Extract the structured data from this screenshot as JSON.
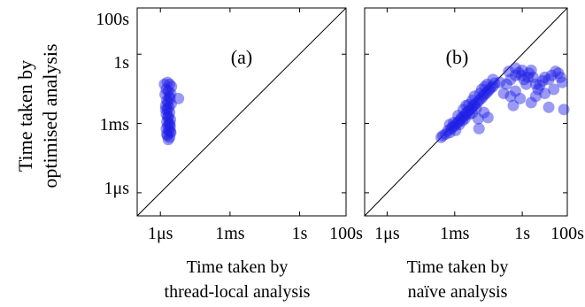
{
  "figure": {
    "ylabel_line1": "Time taken by",
    "ylabel_line2": "optimised analysis"
  },
  "chart_data": [
    {
      "type": "scatter",
      "panel_label": "(a)",
      "title": "",
      "xlabel_line1": "Time taken by",
      "xlabel_line2": "thread-local analysis",
      "xscale": "log",
      "yscale": "log",
      "xlim_seconds": [
        1e-07,
        100
      ],
      "ylim_seconds": [
        1e-07,
        100
      ],
      "xticks": [
        {
          "value": 1e-06,
          "label": "1μs"
        },
        {
          "value": 0.001,
          "label": "1ms"
        },
        {
          "value": 1,
          "label": "1s"
        },
        {
          "value": 100,
          "label": "100s"
        }
      ],
      "yticks": [],
      "diagonal": "y = x",
      "grid": false,
      "point_color": "#1f1fe6",
      "series": [
        {
          "points": [
            [
              1.5e-06,
              0.05
            ],
            [
              2e-06,
              0.06
            ],
            [
              2.5e-06,
              0.05
            ],
            [
              1.8e-06,
              0.03
            ],
            [
              2.2e-06,
              0.025
            ],
            [
              3e-06,
              0.04
            ],
            [
              1.6e-06,
              0.018
            ],
            [
              2.4e-06,
              0.015
            ],
            [
              2.8e-06,
              0.02
            ],
            [
              1.9e-06,
              0.01
            ],
            [
              2.1e-06,
              0.008
            ],
            [
              2.6e-06,
              0.012
            ],
            [
              1.7e-06,
              0.006
            ],
            [
              2.3e-06,
              0.005
            ],
            [
              2.9e-06,
              0.007
            ],
            [
              2e-06,
              0.004
            ],
            [
              2.5e-06,
              0.003
            ],
            [
              1.8e-06,
              0.0025
            ],
            [
              2.2e-06,
              0.002
            ],
            [
              2.7e-06,
              0.0015
            ],
            [
              1.9e-06,
              0.0012
            ],
            [
              2.4e-06,
              0.001
            ],
            [
              2.1e-06,
              0.0008
            ],
            [
              2.6e-06,
              0.0007
            ],
            [
              1.8e-06,
              0.0006
            ],
            [
              2.3e-06,
              0.0005
            ],
            [
              2.8e-06,
              0.0004
            ],
            [
              2e-06,
              0.0003
            ],
            [
              2.5e-06,
              0.00025
            ],
            [
              2.2e-06,
              0.0002
            ],
            [
              1.9e-06,
              0.00035
            ],
            [
              2.7e-06,
              0.00045
            ],
            [
              6e-06,
              0.012
            ],
            [
              2.1e-06,
              0.0018
            ],
            [
              2.6e-06,
              0.0009
            ],
            [
              1.7e-06,
              0.004
            ]
          ]
        }
      ]
    },
    {
      "type": "scatter",
      "panel_label": "(b)",
      "title": "",
      "xlabel_line1": "Time taken by",
      "xlabel_line2": "naïve analysis",
      "xscale": "log",
      "yscale": "log",
      "xlim_seconds": [
        1e-07,
        100
      ],
      "ylim_seconds": [
        1e-07,
        100
      ],
      "xticks": [
        {
          "value": 1e-06,
          "label": "1μs"
        },
        {
          "value": 0.001,
          "label": "1ms"
        },
        {
          "value": 1,
          "label": "1s"
        },
        {
          "value": 100,
          "label": "100s"
        }
      ],
      "yticks": [],
      "diagonal": "y = x",
      "grid": false,
      "point_color": "#1f1fe6",
      "series": [
        {
          "points": [
            [
              0.00025,
              0.00025
            ],
            [
              0.0003,
              0.0003
            ],
            [
              0.0004,
              0.00035
            ],
            [
              0.0005,
              0.0005
            ],
            [
              0.0006,
              0.0004
            ],
            [
              0.0007,
              0.0006
            ],
            [
              0.0008,
              0.0007
            ],
            [
              0.001,
              0.0008
            ],
            [
              0.0012,
              0.001
            ],
            [
              0.0015,
              0.0012
            ],
            [
              0.0018,
              0.0015
            ],
            [
              0.002,
              0.0018
            ],
            [
              0.0025,
              0.002
            ],
            [
              0.003,
              0.0025
            ],
            [
              0.0035,
              0.003
            ],
            [
              0.004,
              0.0035
            ],
            [
              0.005,
              0.004
            ],
            [
              0.006,
              0.005
            ],
            [
              0.007,
              0.006
            ],
            [
              0.008,
              0.007
            ],
            [
              0.01,
              0.008
            ],
            [
              0.012,
              0.01
            ],
            [
              0.015,
              0.012
            ],
            [
              0.018,
              0.015
            ],
            [
              0.02,
              0.018
            ],
            [
              0.025,
              0.02
            ],
            [
              0.03,
              0.025
            ],
            [
              0.035,
              0.03
            ],
            [
              0.04,
              0.035
            ],
            [
              0.05,
              0.04
            ],
            [
              0.0006,
              0.0009
            ],
            [
              0.0009,
              0.0011
            ],
            [
              0.0011,
              0.0005
            ],
            [
              0.0016,
              0.0009
            ],
            [
              0.0022,
              0.0013
            ],
            [
              0.0028,
              0.0016
            ],
            [
              0.0045,
              0.0025
            ],
            [
              0.006,
              0.0028
            ],
            [
              0.009,
              0.0045
            ],
            [
              0.011,
              0.0016
            ],
            [
              0.0014,
              0.0022
            ],
            [
              0.0024,
              0.004
            ],
            [
              0.0032,
              0.006
            ],
            [
              0.0042,
              0.0065
            ],
            [
              0.006,
              0.01
            ],
            [
              0.0075,
              0.015
            ],
            [
              0.013,
              0.02
            ],
            [
              0.016,
              0.03
            ],
            [
              0.022,
              0.04
            ],
            [
              0.028,
              0.05
            ],
            [
              0.05,
              0.08
            ],
            [
              0.06,
              0.055
            ],
            [
              0.02,
              0.003
            ],
            [
              0.03,
              0.0018
            ],
            [
              0.012,
              0.0006
            ],
            [
              0.1,
              0.06
            ],
            [
              0.15,
              0.02
            ],
            [
              0.2,
              0.05
            ],
            [
              0.3,
              0.08
            ],
            [
              0.5,
              0.12
            ],
            [
              0.7,
              0.16
            ],
            [
              0.9,
              0.12
            ],
            [
              1.2,
              0.08
            ],
            [
              1.5,
              0.05
            ],
            [
              1.8,
              0.1
            ],
            [
              2.0,
              0.15
            ],
            [
              2.5,
              0.2
            ],
            [
              3.0,
              0.1
            ],
            [
              4.0,
              0.05
            ],
            [
              5.0,
              0.03
            ],
            [
              6.0,
              0.045
            ],
            [
              8.0,
              0.07
            ],
            [
              10.0,
              0.1
            ],
            [
              15.0,
              0.08
            ],
            [
              20.0,
              0.12
            ],
            [
              30.0,
              0.18
            ],
            [
              40.0,
              0.15
            ],
            [
              50.0,
              0.1
            ],
            [
              60.0,
              0.06
            ],
            [
              70.0,
              0.004
            ],
            [
              0.3,
              0.015
            ],
            [
              0.4,
              0.006
            ],
            [
              0.5,
              0.025
            ],
            [
              0.8,
              0.012
            ],
            [
              2.5,
              0.008
            ],
            [
              4.0,
              0.015
            ],
            [
              10.0,
              0.02
            ],
            [
              15.0,
              0.005
            ],
            [
              25.0,
              0.03
            ],
            [
              0.25,
              0.18
            ],
            [
              0.5,
              0.25
            ],
            [
              1.0,
              0.2
            ]
          ]
        }
      ]
    }
  ]
}
